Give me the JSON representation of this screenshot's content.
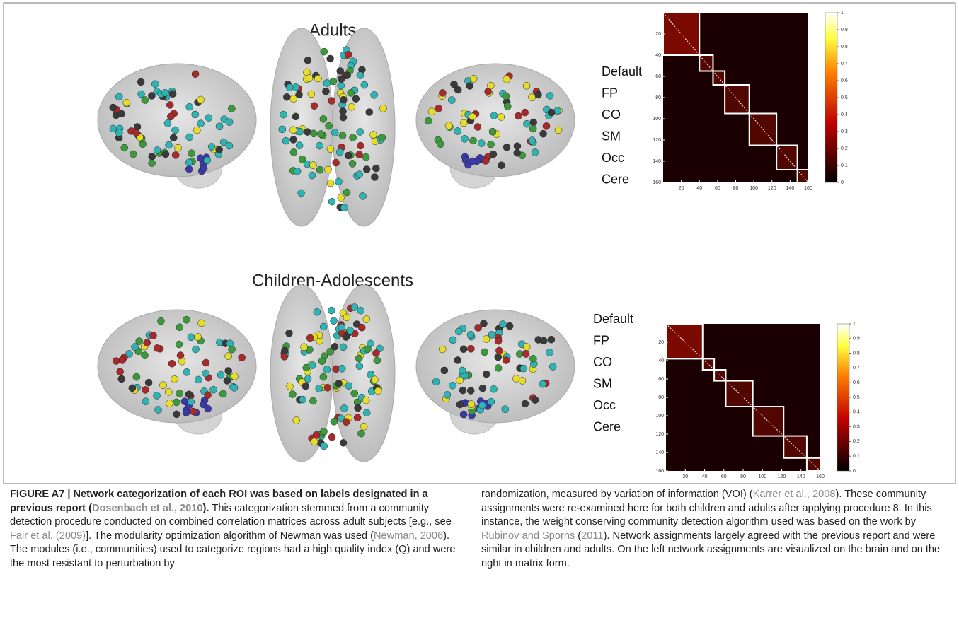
{
  "panels": [
    {
      "title": "Adults",
      "network_labels": [
        "Default",
        "FP",
        "CO",
        "SM",
        "Occ",
        "Cere"
      ],
      "modules": [
        0,
        40,
        55,
        68,
        95,
        125,
        148,
        160
      ],
      "lim": [
        0,
        160
      ],
      "xticks": [
        20,
        40,
        60,
        80,
        100,
        120,
        140,
        160
      ],
      "yticks": [
        20,
        40,
        60,
        80,
        100,
        120,
        140,
        160
      ],
      "clim": [
        0,
        1
      ],
      "colorbar_ticks": [
        0,
        0.1,
        0.2,
        0.3,
        0.4,
        0.5,
        0.6,
        0.7,
        0.8,
        0.9,
        1
      ]
    },
    {
      "title": "Children-Adolescents",
      "network_labels": [
        "Default",
        "FP",
        "CO",
        "SM",
        "Occ",
        "Cere"
      ],
      "modules": [
        0,
        38,
        50,
        62,
        90,
        122,
        146,
        160
      ],
      "lim": [
        0,
        160
      ],
      "xticks": [
        20,
        40,
        60,
        80,
        100,
        120,
        140,
        160
      ],
      "yticks": [
        20,
        40,
        60,
        80,
        100,
        120,
        140,
        160
      ],
      "clim": [
        0,
        1
      ],
      "colorbar_ticks": [
        0,
        0.1,
        0.2,
        0.3,
        0.4,
        0.5,
        0.6,
        0.7,
        0.8,
        0.9,
        1
      ]
    }
  ],
  "caption": {
    "left": [
      {
        "text": "FIGURE A7 | Network categorization of each ROI was based on labels designated in a previous report (",
        "style": "bold"
      },
      {
        "text": "Dosenbach et al., 2010",
        "style": "bold-link"
      },
      {
        "text": "). ",
        "style": "bold"
      },
      {
        "text": "This categorization stemmed from a community detection procedure conducted on combined correlation matrices across adult subjects [e.g., see ",
        "style": "plain"
      },
      {
        "text": "Fair et al. (2009)",
        "style": "link"
      },
      {
        "text": "]. The modularity optimization algorithm of Newman was used (",
        "style": "plain"
      },
      {
        "text": "Newman, 2006",
        "style": "link"
      },
      {
        "text": "). The modules (i.e., communities) used to categorize regions had a high quality index (Q) and were the most resistant to perturbation by",
        "style": "plain"
      }
    ],
    "right": [
      {
        "text": "randomization, measured by variation of information (VOI) (",
        "style": "plain"
      },
      {
        "text": "Karrer et al., 2008",
        "style": "link"
      },
      {
        "text": "). These community assignments were re-examined here for both children and adults after applying procedure 8. In this instance, the weight conserving community detection algorithm used was based on the work by ",
        "style": "plain"
      },
      {
        "text": "Rubinov and Sporns",
        "style": "link"
      },
      {
        "text": " (",
        "style": "plain"
      },
      {
        "text": "2011",
        "style": "link"
      },
      {
        "text": "). Network assignments largely agreed with the previous report and were similar in children and adults. On the left network assignments are visualized on the brain and on the right in matrix form.",
        "style": "plain"
      }
    ]
  }
}
